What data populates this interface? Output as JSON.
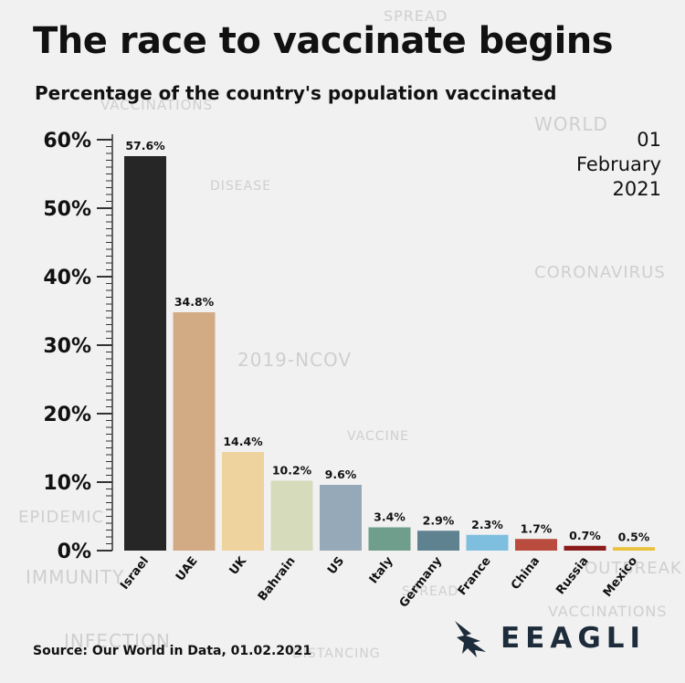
{
  "title": "The race to vaccinate begins",
  "subtitle": "Percentage of the country's population vaccinated",
  "date": {
    "day": "01",
    "month": "February",
    "year": "2021"
  },
  "source": "Source: Our World in Data, 01.02.2021",
  "brand": "EEAGLI",
  "background_words": [
    "VACCINATIONS",
    "SPREAD",
    "WORLD",
    "CORONAVIRUS",
    "2019-NCOV",
    "EPIDEMIC",
    "VACCINE",
    "IMMUNITY",
    "INFECTION",
    "DISTANCING",
    "OUTBREAK",
    "DISEASE"
  ],
  "chart_data": {
    "type": "bar",
    "categories": [
      "Israel",
      "UAE",
      "UK",
      "Bahrain",
      "US",
      "Italy",
      "Germany",
      "France",
      "China",
      "Russia",
      "Mexico"
    ],
    "values": [
      57.6,
      34.8,
      14.4,
      10.2,
      9.6,
      3.4,
      2.9,
      2.3,
      1.7,
      0.7,
      0.5
    ],
    "value_labels": [
      "57.6%",
      "34.8%",
      "14.4%",
      "10.2%",
      "9.6%",
      "3.4%",
      "2.9%",
      "2.3%",
      "1.7%",
      "0.7%",
      "0.5%"
    ],
    "colors": [
      "#262626",
      "#d2ab85",
      "#eed39f",
      "#d6dbbb",
      "#95a9b8",
      "#6f9e8d",
      "#5f8290",
      "#7ebfdf",
      "#b94c3e",
      "#8c1c1c",
      "#e8c33b"
    ],
    "yticks": [
      0,
      10,
      20,
      30,
      40,
      50,
      60
    ],
    "ytick_labels": [
      "0%",
      "10%",
      "20%",
      "30%",
      "40%",
      "50%",
      "60%"
    ],
    "ylim": [
      0,
      60
    ],
    "xlabel": "",
    "ylabel": "",
    "grid": false
  }
}
